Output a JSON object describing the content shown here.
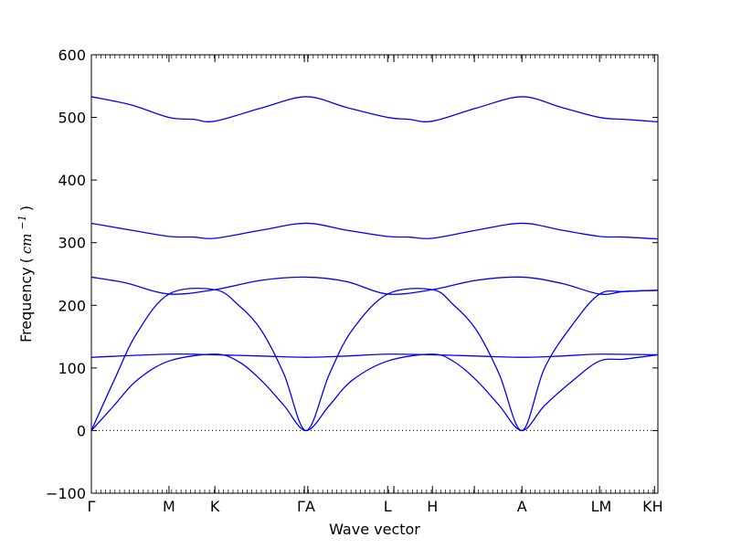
{
  "chart_data": {
    "type": "line",
    "title": "",
    "xlabel": "Wave vector",
    "ylabel": "Frequency",
    "ylabel_unit": "cm",
    "ylabel_unit_exp": "−1",
    "ylim": [
      -100,
      600
    ],
    "yticks": [
      -100,
      0,
      100,
      200,
      300,
      400,
      500,
      600
    ],
    "xlim": [
      0,
      1
    ],
    "high_symmetry_points": [
      {
        "label": "Γ",
        "x": 0.0
      },
      {
        "label": "M",
        "x": 0.137
      },
      {
        "label": "K",
        "x": 0.218
      },
      {
        "label": "Γ",
        "x": 0.376
      },
      {
        "label": "A",
        "x": 0.382
      },
      {
        "label": "L",
        "x": 0.523
      },
      {
        "label": "M",
        "x": 0.534
      },
      {
        "label": "K",
        "x": 0.602
      },
      {
        "label": "H",
        "x": 0.676
      },
      {
        "label": "A",
        "x": 0.76
      },
      {
        "label": "L",
        "x": 0.897
      },
      {
        "label": "H",
        "x": 0.994
      }
    ],
    "xtick_labels": [
      {
        "label": "Γ",
        "x": 0.0
      },
      {
        "label": "M",
        "x": 0.137
      },
      {
        "label": "K",
        "x": 0.218
      },
      {
        "label": "ΓA",
        "x": 0.379
      },
      {
        "label": "L",
        "x": 0.523
      },
      {
        "label": "H",
        "x": 0.602
      },
      {
        "label": "A",
        "x": 0.76
      },
      {
        "label": "LM",
        "x": 0.9
      },
      {
        "label": "KH",
        "x": 0.991
      }
    ],
    "zero_line": {
      "y": 0,
      "style": "dotted"
    },
    "line_color": "#0000ff",
    "series": [
      {
        "x": [
          0.0,
          0.07,
          0.137,
          0.18,
          0.218,
          0.3,
          0.379,
          0.45,
          0.523,
          0.56,
          0.602,
          0.68,
          0.76,
          0.83,
          0.897,
          0.94,
          1.0
        ],
        "y": [
          533,
          520,
          500,
          497,
          494,
          515,
          533,
          516,
          500,
          497,
          494,
          515,
          533,
          516,
          500,
          497,
          493
        ]
      },
      {
        "x": [
          0.0,
          0.07,
          0.137,
          0.18,
          0.218,
          0.3,
          0.379,
          0.45,
          0.523,
          0.56,
          0.602,
          0.68,
          0.76,
          0.83,
          0.897,
          0.94,
          1.0
        ],
        "y": [
          331,
          320,
          310,
          309,
          307,
          320,
          331,
          320,
          310,
          309,
          307,
          320,
          331,
          320,
          310,
          309,
          306
        ]
      },
      {
        "x": [
          0.0,
          0.06,
          0.137,
          0.218,
          0.3,
          0.379,
          0.45,
          0.523,
          0.602,
          0.68,
          0.76,
          0.83,
          0.897,
          0.94,
          1.0
        ],
        "y": [
          245,
          236,
          218,
          225,
          240,
          245,
          238,
          218,
          225,
          240,
          245,
          235,
          218,
          222,
          224
        ]
      },
      {
        "x": [
          0.0,
          0.04,
          0.08,
          0.137,
          0.218,
          0.26,
          0.3,
          0.34,
          0.379,
          0.42,
          0.46,
          0.523,
          0.602,
          0.64,
          0.68,
          0.72,
          0.76,
          0.8,
          0.85,
          0.897,
          0.94,
          1.0
        ],
        "y": [
          0,
          80,
          155,
          218,
          225,
          200,
          160,
          90,
          0,
          90,
          160,
          218,
          225,
          200,
          160,
          90,
          0,
          100,
          170,
          218,
          222,
          224
        ]
      },
      {
        "x": [
          0.0,
          0.137,
          0.218,
          0.3,
          0.379,
          0.45,
          0.523,
          0.602,
          0.68,
          0.76,
          0.83,
          0.897,
          1.0
        ],
        "y": [
          117,
          122,
          121,
          119,
          117,
          119,
          122,
          121,
          119,
          117,
          119,
          122,
          121
        ]
      },
      {
        "x": [
          0.0,
          0.04,
          0.08,
          0.137,
          0.218,
          0.26,
          0.3,
          0.34,
          0.379,
          0.42,
          0.46,
          0.523,
          0.602,
          0.64,
          0.68,
          0.72,
          0.76,
          0.8,
          0.85,
          0.897,
          0.94,
          1.0
        ],
        "y": [
          0,
          40,
          80,
          111,
          122,
          110,
          80,
          40,
          0,
          40,
          80,
          111,
          122,
          110,
          80,
          40,
          0,
          40,
          80,
          111,
          114,
          121
        ]
      }
    ]
  }
}
